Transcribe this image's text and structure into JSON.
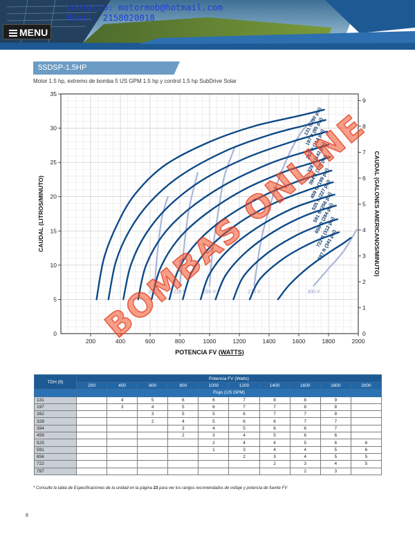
{
  "header": {
    "contact_email": "contacto: motormob@hotmail.com",
    "contact_phone": "Móvil: 2158020018",
    "menu_label": "MENU"
  },
  "section": {
    "title": "5SDSP-1.5HP",
    "subtitle": "Motor 1.5 hp, extremo de bomba 5 US GPM 1.5 hp y control 1.5 hp SubDrive Solar"
  },
  "chart_data": {
    "type": "line",
    "xlabel_main": "POTENCIA FV (",
    "xlabel_bold": "WATTS",
    "xlabel_end": ")",
    "ylabel": "CAUDAL (LITROS/MINUTO)",
    "y2label": "CAUDAL (GALONES AMERICANOS/MINUTO)",
    "xlim": [
      0,
      2000
    ],
    "ylim": [
      0,
      35
    ],
    "y2lim": [
      0,
      9.25
    ],
    "xticks": [
      200,
      400,
      600,
      800,
      1000,
      1200,
      1400,
      1600,
      1800,
      2000
    ],
    "yticks": [
      5,
      10,
      15,
      20,
      25,
      30,
      35
    ],
    "y2ticks": [
      1,
      2,
      3,
      4,
      5,
      6,
      7,
      8,
      9
    ],
    "grid": true,
    "series": [
      {
        "name": "131 ft (57 psi)",
        "points": [
          [
            240,
            5
          ],
          [
            290,
            11
          ],
          [
            380,
            16
          ],
          [
            500,
            20.4
          ],
          [
            700,
            24.6
          ],
          [
            1000,
            28
          ],
          [
            1300,
            30.3
          ],
          [
            1600,
            31.8
          ],
          [
            1770,
            32.7
          ]
        ]
      },
      {
        "name": "197 ft (85 psi)",
        "points": [
          [
            320,
            5
          ],
          [
            370,
            10.5
          ],
          [
            460,
            15
          ],
          [
            600,
            19.2
          ],
          [
            800,
            23
          ],
          [
            1100,
            26.6
          ],
          [
            1400,
            29
          ],
          [
            1640,
            30.4
          ],
          [
            1780,
            31.2
          ]
        ]
      },
      {
        "name": "262 ft (114 psi)",
        "points": [
          [
            420,
            5
          ],
          [
            470,
            10
          ],
          [
            570,
            14.5
          ],
          [
            720,
            18.5
          ],
          [
            950,
            22.4
          ],
          [
            1250,
            25.7
          ],
          [
            1550,
            28
          ],
          [
            1790,
            29.5
          ]
        ]
      },
      {
        "name": "328 ft (142 psi)",
        "points": [
          [
            520,
            5
          ],
          [
            570,
            9.8
          ],
          [
            680,
            14.2
          ],
          [
            850,
            18
          ],
          [
            1100,
            21.7
          ],
          [
            1400,
            24.8
          ],
          [
            1650,
            26.6
          ],
          [
            1800,
            27.6
          ]
        ]
      },
      {
        "name": "394 ft (170 psi)",
        "points": [
          [
            610,
            5
          ],
          [
            670,
            9.6
          ],
          [
            790,
            13.8
          ],
          [
            970,
            17.4
          ],
          [
            1220,
            20.9
          ],
          [
            1500,
            23.6
          ],
          [
            1700,
            25
          ],
          [
            1810,
            25.8
          ]
        ]
      },
      {
        "name": "459 ft (199 psi)",
        "points": [
          [
            730,
            5
          ],
          [
            790,
            9.3
          ],
          [
            910,
            13.2
          ],
          [
            1100,
            16.8
          ],
          [
            1350,
            20
          ],
          [
            1600,
            22.3
          ],
          [
            1820,
            23.8
          ]
        ]
      },
      {
        "name": "525 ft (227 psi)",
        "points": [
          [
            820,
            5
          ],
          [
            880,
            9
          ],
          [
            1010,
            12.8
          ],
          [
            1200,
            16.2
          ],
          [
            1440,
            19.1
          ],
          [
            1680,
            21.1
          ],
          [
            1830,
            22.1
          ]
        ]
      },
      {
        "name": "591 ft (256 psi)",
        "points": [
          [
            940,
            5
          ],
          [
            1000,
            8.7
          ],
          [
            1130,
            12.3
          ],
          [
            1330,
            15.6
          ],
          [
            1560,
            18.3
          ],
          [
            1760,
            19.8
          ],
          [
            1840,
            20.3
          ]
        ]
      },
      {
        "name": "656 ft (284 psi)",
        "points": [
          [
            1040,
            5
          ],
          [
            1110,
            8.6
          ],
          [
            1250,
            12
          ],
          [
            1440,
            15
          ],
          [
            1650,
            17.3
          ],
          [
            1850,
            18.7
          ]
        ]
      },
      {
        "name": "722 ft (312 psi)",
        "points": [
          [
            1160,
            5
          ],
          [
            1230,
            8.4
          ],
          [
            1380,
            11.6
          ],
          [
            1570,
            14.2
          ],
          [
            1760,
            16
          ],
          [
            1860,
            16.7
          ]
        ]
      },
      {
        "name": "787 ft (341 psi)",
        "points": [
          [
            1270,
            5
          ],
          [
            1340,
            8
          ],
          [
            1500,
            11
          ],
          [
            1690,
            13.3
          ],
          [
            1870,
            14.8
          ]
        ]
      },
      {
        "name": "",
        "points": [
          [
            1460,
            5
          ],
          [
            1540,
            7.2
          ],
          [
            1660,
            9.6
          ],
          [
            1800,
            11.8
          ],
          [
            1900,
            13.2
          ],
          [
            1950,
            14
          ]
        ]
      }
    ],
    "voltage_lines": [
      {
        "label": "200 V",
        "points": [
          [
            630,
            7
          ],
          [
            650,
            12
          ],
          [
            680,
            17
          ],
          [
            720,
            20
          ]
        ]
      },
      {
        "label": "225 V",
        "points": [
          [
            800,
            7
          ],
          [
            820,
            11
          ],
          [
            860,
            18
          ],
          [
            920,
            23.5
          ]
        ]
      },
      {
        "label": "250 V",
        "points": [
          [
            1000,
            7
          ],
          [
            1020,
            12
          ],
          [
            1060,
            18
          ],
          [
            1100,
            23
          ],
          [
            1170,
            27.2
          ]
        ]
      },
      {
        "label": "275 V",
        "points": [
          [
            1300,
            7
          ],
          [
            1350,
            14
          ],
          [
            1440,
            21
          ],
          [
            1530,
            26
          ],
          [
            1620,
            29.5
          ],
          [
            1710,
            31.6
          ]
        ]
      },
      {
        "label": "300 V",
        "points": [
          [
            1700,
            7
          ],
          [
            1800,
            9.5
          ],
          [
            1900,
            12
          ],
          [
            1990,
            15.2
          ]
        ]
      }
    ]
  },
  "table": {
    "header_power": "Potencia FV (Watts)",
    "header_tdh": "TDH (ft)",
    "header_flow": "Flujo (US GPM)",
    "power_cols": [
      "200",
      "400",
      "600",
      "800",
      "1000",
      "1200",
      "1400",
      "1600",
      "1800",
      "2000"
    ],
    "rows": [
      {
        "tdh": "131",
        "vals": [
          "",
          "4",
          "5",
          "6",
          "6",
          "7",
          "8",
          "8",
          "9",
          ""
        ]
      },
      {
        "tdh": "197",
        "vals": [
          "",
          "3",
          "4",
          "5",
          "6",
          "7",
          "7",
          "8",
          "8",
          ""
        ]
      },
      {
        "tdh": "262",
        "vals": [
          "",
          "",
          "3",
          "5",
          "5",
          "6",
          "7",
          "7",
          "8",
          ""
        ]
      },
      {
        "tdh": "328",
        "vals": [
          "",
          "",
          "2",
          "4",
          "5",
          "6",
          "6",
          "7",
          "7",
          ""
        ]
      },
      {
        "tdh": "394",
        "vals": [
          "",
          "",
          "",
          "3",
          "4",
          "5",
          "6",
          "6",
          "7",
          ""
        ]
      },
      {
        "tdh": "459",
        "vals": [
          "",
          "",
          "",
          "2",
          "3",
          "4",
          "5",
          "6",
          "6",
          ""
        ]
      },
      {
        "tdh": "525",
        "vals": [
          "",
          "",
          "",
          "",
          "2",
          "4",
          "4",
          "5",
          "6",
          "6"
        ]
      },
      {
        "tdh": "591",
        "vals": [
          "",
          "",
          "",
          "",
          "1",
          "3",
          "4",
          "4",
          "5",
          "6"
        ]
      },
      {
        "tdh": "656",
        "vals": [
          "",
          "",
          "",
          "",
          "",
          "2",
          "3",
          "4",
          "5",
          "5"
        ]
      },
      {
        "tdh": "722",
        "vals": [
          "",
          "",
          "",
          "",
          "",
          "",
          "2",
          "3",
          "4",
          "5"
        ]
      },
      {
        "tdh": "787",
        "vals": [
          "",
          "",
          "",
          "",
          "",
          "",
          "",
          "2",
          "3",
          ""
        ]
      }
    ]
  },
  "footnote": {
    "pre": "* Consulte la tabla de Especificaciones de la unidad en la página ",
    "page": "23",
    "post": " para ver los rangos recomendados de voltaje y potencia de fuente FV"
  },
  "page_number": "8",
  "watermark": "BOMBAS ONLINE",
  "colors": {
    "curve": "#0e4a88",
    "voltage": "#a9b5d8",
    "accent": "#2366a6",
    "watermark": "#f05028"
  }
}
